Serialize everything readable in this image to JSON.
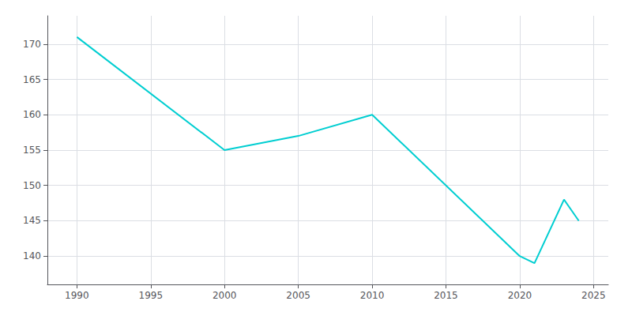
{
  "chart_data": {
    "type": "line",
    "x": [
      1990,
      2000,
      2005,
      2010,
      2020,
      2021,
      2023,
      2024
    ],
    "values": [
      171,
      155,
      157,
      160,
      140,
      139,
      148,
      145
    ],
    "color": "#00CED1",
    "xlim": [
      1988,
      2026
    ],
    "ylim": [
      136,
      174
    ],
    "xticks": [
      1990,
      1995,
      2000,
      2005,
      2010,
      2015,
      2020,
      2025
    ],
    "yticks": [
      140,
      145,
      150,
      155,
      160,
      165,
      170
    ],
    "grid": true
  }
}
